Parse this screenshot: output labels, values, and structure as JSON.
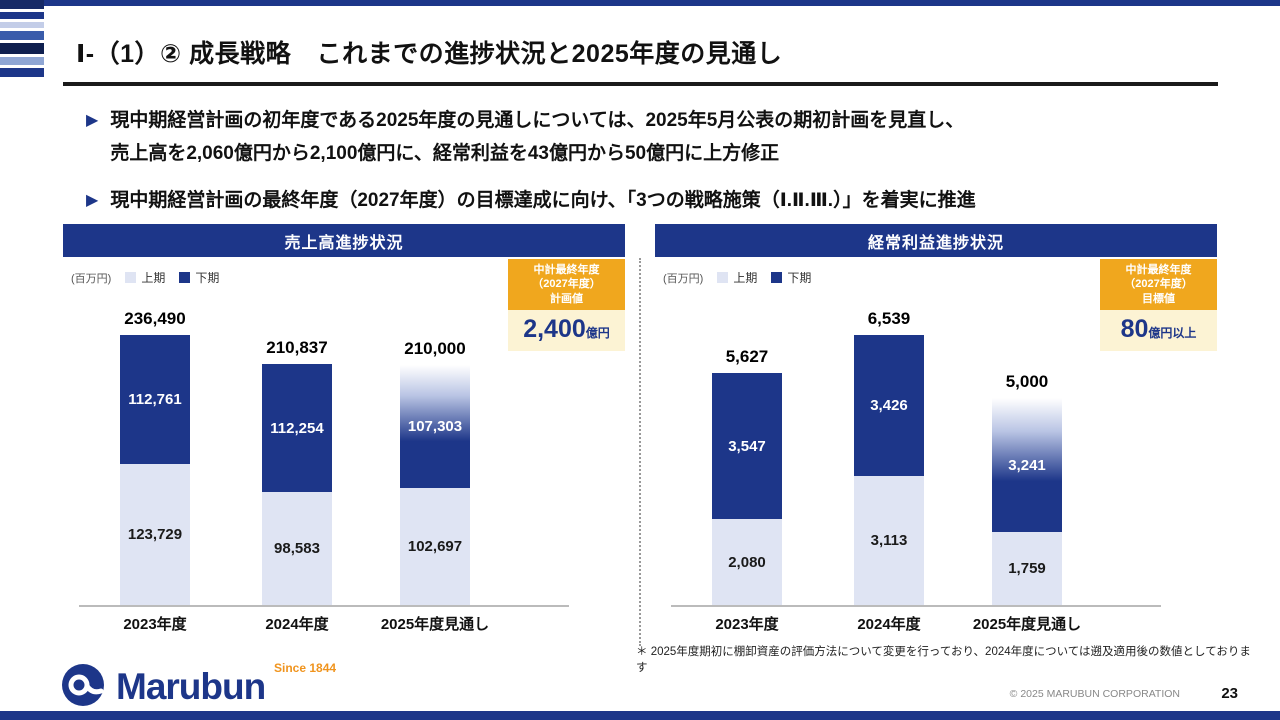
{
  "page": {
    "title": "Ⅰ-（1）② 成長戦略　これまでの進捗状況と2025年度の見通し",
    "page_number": "23",
    "copyright": "© 2025 MARUBUN CORPORATION"
  },
  "colors": {
    "primary_navy": "#1d3689",
    "light_half": "#dfe4f3",
    "badge_orange": "#f0a71e",
    "badge_cream": "#fcf3d4",
    "since_orange": "#f0941e"
  },
  "bullets": [
    {
      "lines": [
        "現中期経営計画の初年度である2025年度の見通しについては、2025年5月公表の期初計画を見直し、",
        "売上高を2,060億円から2,100億円に、経常利益を43億円から50億円に上方修正"
      ]
    },
    {
      "lines": [
        "現中期経営計画の最終年度（2027年度）の目標達成に向け、「3つの戦略施策（Ⅰ.Ⅱ.Ⅲ.）」を着実に推進"
      ]
    }
  ],
  "chart_data": [
    {
      "type": "bar",
      "stacked": true,
      "title": "売上高進捗状況",
      "unit_label": "(百万円)",
      "categories": [
        "2023年度",
        "2024年度",
        "2025年度見通し"
      ],
      "series": [
        {
          "name": "上期",
          "values": [
            123729,
            98583,
            102697
          ],
          "color": "#dfe4f3"
        },
        {
          "name": "下期",
          "values": [
            112761,
            112254,
            107303
          ],
          "color": "#1d3689"
        }
      ],
      "totals": [
        236490,
        210837,
        210000
      ],
      "forecast_index": 2,
      "ylim": [
        0,
        250000
      ],
      "legend_position": "top-left",
      "grid": false,
      "badge": {
        "header_lines": [
          "中計最終年度",
          "（2027年度）",
          "計画値"
        ],
        "value": "2,400",
        "value_suffix": "億円"
      }
    },
    {
      "type": "bar",
      "stacked": true,
      "title": "経常利益進捗状況",
      "unit_label": "(百万円)",
      "categories": [
        "2023年度",
        "2024年度",
        "2025年度見通し"
      ],
      "series": [
        {
          "name": "上期",
          "values": [
            2080,
            3113,
            1759
          ],
          "color": "#dfe4f3"
        },
        {
          "name": "下期",
          "values": [
            3547,
            3426,
            3241
          ],
          "color": "#1d3689"
        }
      ],
      "totals": [
        5627,
        6539,
        5000
      ],
      "forecast_index": 2,
      "ylim": [
        0,
        7000
      ],
      "legend_position": "top-left",
      "grid": false,
      "badge": {
        "header_lines": [
          "中計最終年度",
          "（2027年度）",
          "目標値"
        ],
        "value": "80",
        "value_suffix": "億円以上"
      }
    }
  ],
  "footnote": "＊ 2025年度期初に棚卸資産の評価方法について変更を行っており、2024年度については遡及適用後の数値としております",
  "footer": {
    "brand": "Marubun",
    "since": "Since 1844"
  },
  "decor": {
    "corner_stripes": [
      {
        "color": "#162a66",
        "height": 9
      },
      {
        "color": "#ffffff",
        "height": 3
      },
      {
        "color": "#1d3689",
        "height": 7
      },
      {
        "color": "#ffffff",
        "height": 3
      },
      {
        "color": "#c3cde8",
        "height": 6
      },
      {
        "color": "#ffffff",
        "height": 3
      },
      {
        "color": "#3a5cab",
        "height": 9
      },
      {
        "color": "#ffffff",
        "height": 3
      },
      {
        "color": "#0f1f4f",
        "height": 11
      },
      {
        "color": "#ffffff",
        "height": 3
      },
      {
        "color": "#8fa6d4",
        "height": 8
      },
      {
        "color": "#ffffff",
        "height": 3
      },
      {
        "color": "#1d3689",
        "height": 9
      }
    ]
  }
}
